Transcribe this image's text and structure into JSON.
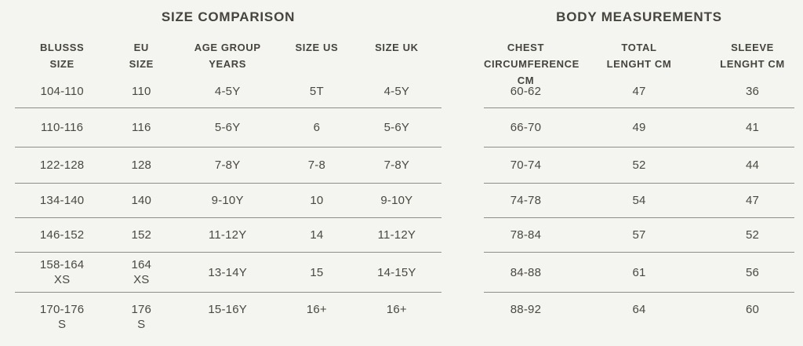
{
  "page": {
    "background": "#f4f4f1",
    "text_color": "#4a4941",
    "divider_color": "#8d8d89"
  },
  "size_comparison": {
    "title": "SIZE COMPARISON",
    "columns": [
      "BLUSSS\nSIZE",
      "EU\nSIZE",
      "AGE GROUP\nYEARS",
      "SIZE US",
      "SIZE UK"
    ],
    "rows": [
      [
        "104-110",
        "110",
        "4-5Y",
        "5T",
        "4-5Y"
      ],
      [
        "110-116",
        "116",
        "5-6Y",
        "6",
        "5-6Y"
      ],
      [
        "122-128",
        "128",
        "7-8Y",
        "7-8",
        "7-8Y"
      ],
      [
        "134-140",
        "140",
        "9-10Y",
        "10",
        "9-10Y"
      ],
      [
        "146-152",
        "152",
        "11-12Y",
        "14",
        "11-12Y"
      ],
      [
        "158-164\nXS",
        "164\nXS",
        "13-14Y",
        "15",
        "14-15Y"
      ],
      [
        "170-176\nS",
        "176\nS",
        "15-16Y",
        "16+",
        "16+"
      ]
    ]
  },
  "body_measurements": {
    "title": "BODY MEASUREMENTS",
    "columns": [
      "CHEST\nCIRCUMFERENCE CM",
      "TOTAL\nLENGHT CM",
      "SLEEVE\nLENGHT CM"
    ],
    "rows": [
      [
        "60-62",
        "47",
        "36"
      ],
      [
        "66-70",
        "49",
        "41"
      ],
      [
        "70-74",
        "52",
        "44"
      ],
      [
        "74-78",
        "54",
        "47"
      ],
      [
        "78-84",
        "57",
        "52"
      ],
      [
        "84-88",
        "61",
        "56"
      ],
      [
        "88-92",
        "64",
        "60"
      ]
    ]
  }
}
